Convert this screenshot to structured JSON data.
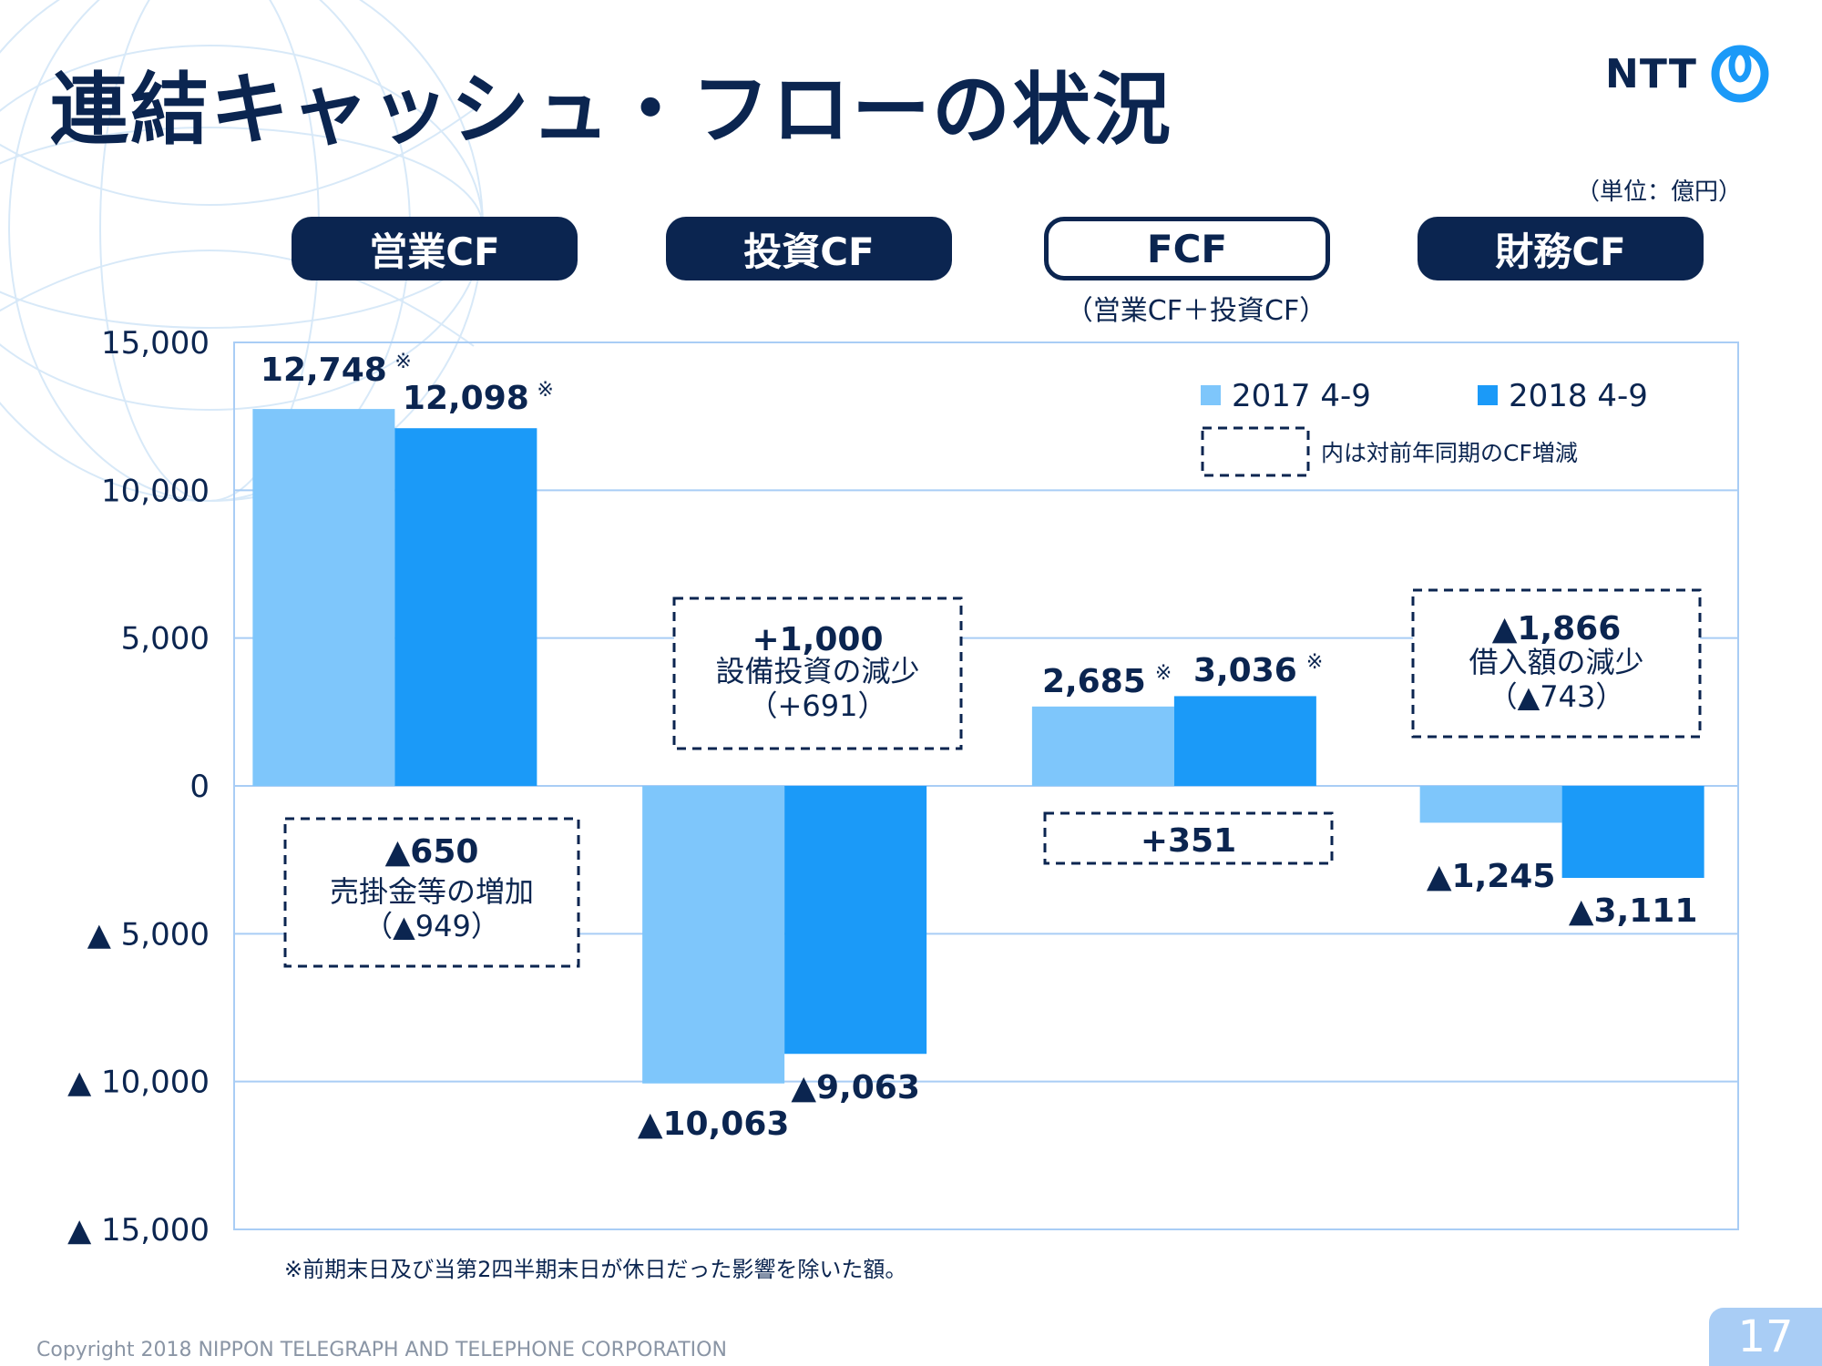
{
  "title": "連結キャッシュ・フローの状況",
  "logo_text": "NTT",
  "unit": "（単位：億円）",
  "categories_header": [
    {
      "label": "営業CF",
      "style": "solid"
    },
    {
      "label": "投資CF",
      "style": "solid"
    },
    {
      "label": "FCF",
      "style": "outline"
    },
    {
      "label": "財務CF",
      "style": "solid"
    }
  ],
  "fcf_sub": "（営業CF＋投資CF）",
  "legend": {
    "series1": "2017 4-9",
    "series2": "2018 4-9",
    "dashed_note": "内は対前年同期のCF増減"
  },
  "colors": {
    "series1": "#7ec6fb",
    "series2": "#1b9af8",
    "navy": "#0b2550",
    "grid": "#a9cdf5"
  },
  "chart_data": {
    "type": "bar",
    "categories": [
      "営業CF",
      "投資CF",
      "FCF",
      "財務CF"
    ],
    "series": [
      {
        "name": "2017 4-9",
        "values": [
          12748,
          -10063,
          2685,
          -1245
        ]
      },
      {
        "name": "2018 4-9",
        "values": [
          12098,
          -9063,
          3036,
          -3111
        ]
      }
    ],
    "ylim": [
      -15000,
      15000
    ],
    "yticks": [
      15000,
      10000,
      5000,
      0,
      -5000,
      -10000,
      -15000
    ],
    "ytick_labels": [
      "15,000",
      "10,000",
      "5,000",
      "0",
      "▲ 5,000",
      "▲ 10,000",
      "▲ 15,000"
    ],
    "data_labels": [
      [
        "12,748",
        "12,098"
      ],
      [
        "▲10,063",
        "▲9,063"
      ],
      [
        "2,685",
        "3,036"
      ],
      [
        "▲1,245",
        "▲3,111"
      ]
    ],
    "data_label_marks": [
      [
        "※",
        "※"
      ],
      [
        "",
        ""
      ],
      [
        "※",
        "※"
      ],
      [
        "",
        ""
      ]
    ],
    "grid": true,
    "legend_position": "top-right",
    "annotations": [
      {
        "lines": [
          "▲650",
          "売掛金等の増加",
          "（▲949）"
        ]
      },
      {
        "lines": [
          "+1,000",
          "設備投資の減少",
          "（+691）"
        ]
      },
      {
        "lines": [
          "+351"
        ]
      },
      {
        "lines": [
          "▲1,866",
          "借入額の減少",
          "（▲743）"
        ]
      }
    ]
  },
  "footnote": "※前期末日及び当第2四半期末日が休日だった影響を除いた額。",
  "copyright": "Copyright 2018 NIPPON TELEGRAPH AND TELEPHONE CORPORATION",
  "page_number": "17"
}
